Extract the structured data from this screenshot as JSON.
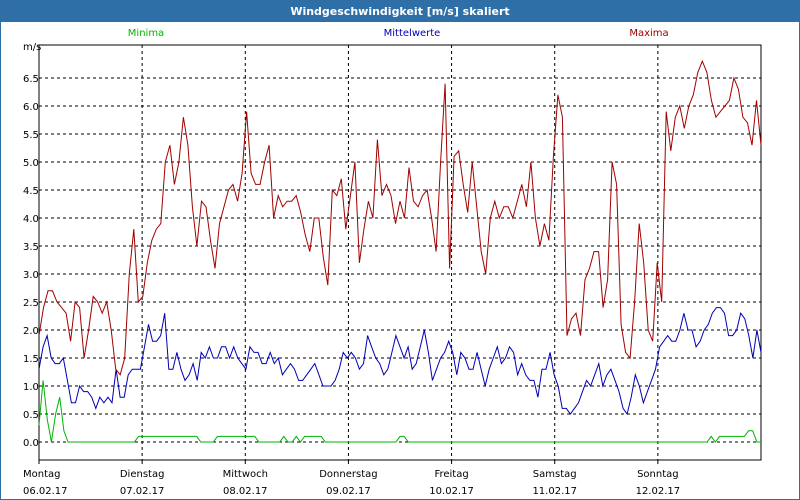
{
  "window": {
    "title": "Windgeschwindigkeit [m/s] skaliert"
  },
  "colors": {
    "minima": "#00b400",
    "mittel": "#0000b4",
    "maxima": "#a00000",
    "titlebar": "#2e6fa8"
  },
  "chart_data": {
    "type": "line",
    "title": "Windgeschwindigkeit [m/s] skaliert",
    "ylabel": "m/s",
    "ylim": [
      0,
      7.0
    ],
    "yticks": [
      "0.0",
      "0.5",
      "1.0",
      "1.5",
      "2.0",
      "2.5",
      "3.0",
      "3.5",
      "4.0",
      "4.5",
      "5.0",
      "5.5",
      "6.0",
      "6.5"
    ],
    "xlim_days": 7,
    "days": [
      {
        "weekday": "Montag",
        "date": "06.02.17"
      },
      {
        "weekday": "Dienstag",
        "date": "07.02.17"
      },
      {
        "weekday": "Mittwoch",
        "date": "08.02.17"
      },
      {
        "weekday": "Donnerstag",
        "date": "09.02.17"
      },
      {
        "weekday": "Freitag",
        "date": "10.02.17"
      },
      {
        "weekday": "Samstag",
        "date": "11.02.17"
      },
      {
        "weekday": "Sonntag",
        "date": "12.02.17"
      }
    ],
    "series": [
      {
        "name": "Minima",
        "values": [
          0.3,
          1.1,
          0.4,
          0.0,
          0.5,
          0.8,
          0.2,
          0.0,
          0,
          0,
          0,
          0,
          0,
          0,
          0,
          0,
          0,
          0,
          0,
          0,
          0,
          0,
          0,
          0,
          0.1,
          0.1,
          0.1,
          0.1,
          0.1,
          0.1,
          0.1,
          0.1,
          0.1,
          0.1,
          0.1,
          0.1,
          0.1,
          0.1,
          0.1,
          0,
          0,
          0,
          0,
          0.1,
          0.1,
          0.1,
          0.1,
          0.1,
          0.1,
          0.1,
          0.1,
          0.1,
          0.1,
          0,
          0,
          0,
          0,
          0,
          0,
          0.1,
          0,
          0,
          0.1,
          0,
          0.1,
          0.1,
          0.1,
          0.1,
          0.1,
          0,
          0,
          0,
          0,
          0,
          0,
          0,
          0,
          0,
          0,
          0,
          0,
          0,
          0,
          0,
          0,
          0,
          0,
          0.1,
          0.1,
          0,
          0,
          0,
          0,
          0,
          0,
          0,
          0,
          0,
          0,
          0,
          0,
          0,
          0,
          0,
          0,
          0,
          0,
          0,
          0,
          0,
          0,
          0,
          0,
          0,
          0,
          0,
          0,
          0,
          0,
          0,
          0,
          0,
          0,
          0,
          0,
          0,
          0,
          0,
          0,
          0,
          0,
          0,
          0,
          0,
          0,
          0,
          0,
          0,
          0,
          0,
          0,
          0,
          0,
          0,
          0,
          0,
          0,
          0,
          0,
          0,
          0,
          0,
          0,
          0,
          0,
          0,
          0,
          0,
          0,
          0,
          0,
          0,
          0.1,
          0,
          0.1,
          0.1,
          0.1,
          0.1,
          0.1,
          0.1,
          0.1,
          0.2,
          0.2,
          0,
          0
        ]
      },
      {
        "name": "Mittelwerte",
        "values": [
          1.3,
          1.7,
          1.9,
          1.5,
          1.4,
          1.4,
          1.5,
          1.1,
          0.7,
          0.7,
          1.0,
          0.9,
          0.9,
          0.8,
          0.6,
          0.8,
          0.7,
          0.8,
          0.7,
          1.3,
          0.8,
          0.8,
          1.2,
          1.3,
          1.3,
          1.3,
          1.7,
          2.1,
          1.8,
          1.8,
          1.9,
          2.3,
          1.3,
          1.3,
          1.6,
          1.3,
          1.1,
          1.2,
          1.4,
          1.1,
          1.6,
          1.5,
          1.7,
          1.5,
          1.5,
          1.7,
          1.7,
          1.5,
          1.7,
          1.5,
          1.4,
          1.3,
          1.7,
          1.6,
          1.6,
          1.4,
          1.4,
          1.6,
          1.4,
          1.5,
          1.2,
          1.3,
          1.4,
          1.3,
          1.1,
          1.1,
          1.2,
          1.3,
          1.4,
          1.2,
          1.0,
          1.0,
          1.0,
          1.1,
          1.3,
          1.6,
          1.5,
          1.6,
          1.5,
          1.3,
          1.4,
          1.9,
          1.7,
          1.5,
          1.4,
          1.2,
          1.3,
          1.6,
          1.9,
          1.7,
          1.5,
          1.7,
          1.3,
          1.4,
          1.7,
          2.0,
          1.6,
          1.1,
          1.3,
          1.5,
          1.6,
          1.8,
          1.6,
          1.2,
          1.6,
          1.5,
          1.3,
          1.3,
          1.6,
          1.3,
          1.0,
          1.3,
          1.5,
          1.7,
          1.4,
          1.5,
          1.7,
          1.6,
          1.2,
          1.4,
          1.2,
          1.1,
          1.1,
          0.8,
          1.3,
          1.3,
          1.6,
          1.2,
          1.0,
          0.6,
          0.6,
          0.5,
          0.6,
          0.7,
          0.9,
          1.1,
          1.0,
          1.2,
          1.4,
          1.0,
          1.2,
          1.3,
          1.1,
          0.9,
          0.6,
          0.5,
          0.8,
          1.2,
          1.0,
          0.7,
          0.9,
          1.1,
          1.3,
          1.7,
          1.8,
          1.9,
          1.8,
          1.8,
          2.0,
          2.3,
          2.0,
          2.0,
          1.7,
          1.8,
          2.0,
          2.1,
          2.3,
          2.4,
          2.4,
          2.3,
          1.9,
          1.9,
          2.0,
          2.3,
          2.2,
          1.9,
          1.5,
          2.0,
          1.6
        ]
      },
      {
        "name": "Maxima",
        "values": [
          1.9,
          2.4,
          2.7,
          2.7,
          2.5,
          2.4,
          2.3,
          1.8,
          2.5,
          2.4,
          1.5,
          2.0,
          2.6,
          2.5,
          2.3,
          2.5,
          2.0,
          1.3,
          1.2,
          1.5,
          3.0,
          3.8,
          2.5,
          2.6,
          3.2,
          3.6,
          3.8,
          3.9,
          5.0,
          5.3,
          4.6,
          5.0,
          5.8,
          5.3,
          4.2,
          3.5,
          4.3,
          4.2,
          3.6,
          3.1,
          3.9,
          4.2,
          4.5,
          4.6,
          4.3,
          4.8,
          5.9,
          4.8,
          4.6,
          4.6,
          5.0,
          5.3,
          4.0,
          4.4,
          4.2,
          4.3,
          4.3,
          4.4,
          4.1,
          3.7,
          3.4,
          4.0,
          4.0,
          3.3,
          2.8,
          4.5,
          4.4,
          4.7,
          3.8,
          4.4,
          5.0,
          3.2,
          3.8,
          4.3,
          4.0,
          5.4,
          4.4,
          4.6,
          4.4,
          3.9,
          4.3,
          4.0,
          4.9,
          4.3,
          4.2,
          4.4,
          4.5,
          4.0,
          3.4,
          5.0,
          6.4,
          3.1,
          5.1,
          5.2,
          4.6,
          4.1,
          5.0,
          4.2,
          3.4,
          3.0,
          4.0,
          4.3,
          4.0,
          4.2,
          4.2,
          4.0,
          4.3,
          4.6,
          4.2,
          5.0,
          4.0,
          3.5,
          3.9,
          3.6,
          5.1,
          6.2,
          5.8,
          1.9,
          2.2,
          2.3,
          1.9,
          2.9,
          3.1,
          3.4,
          3.4,
          2.4,
          2.9,
          5.0,
          4.6,
          2.1,
          1.6,
          1.5,
          2.5,
          3.9,
          3.2,
          2.0,
          1.8,
          3.2,
          2.5,
          5.9,
          5.2,
          5.8,
          6.0,
          5.6,
          6.0,
          6.2,
          6.6,
          6.8,
          6.6,
          6.1,
          5.8,
          5.9,
          6.0,
          6.1,
          6.5,
          6.3,
          5.8,
          5.7,
          5.3,
          6.1,
          5.3
        ]
      }
    ],
    "grid": true,
    "legend": "top"
  }
}
